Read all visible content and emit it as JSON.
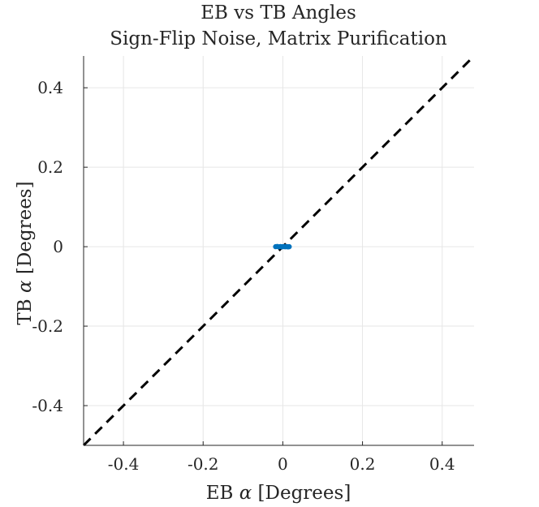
{
  "chart_data": {
    "type": "scatter",
    "title": [
      "EB vs TB Angles",
      "Sign-Flip Noise, Matrix Purification"
    ],
    "xlabel": {
      "prefix": "EB ",
      "symbol": "α",
      "suffix": " [Degrees]"
    },
    "ylabel": {
      "prefix": "TB ",
      "symbol": "α",
      "suffix": " [Degrees]"
    },
    "xlim": [
      -0.5,
      0.48
    ],
    "ylim": [
      -0.5,
      0.48
    ],
    "xticks": [
      -0.4,
      -0.2,
      0,
      0.2,
      0.4
    ],
    "yticks": [
      -0.4,
      -0.2,
      0,
      0.2,
      0.4
    ],
    "xtick_labels": [
      "-0.4",
      "-0.2",
      "0",
      "0.2",
      "0.4"
    ],
    "ytick_labels": [
      "-0.4",
      "-0.2",
      "0",
      "0.2",
      "0.4"
    ],
    "grid": true,
    "points": [
      {
        "x": -0.018,
        "y": 0.0
      },
      {
        "x": -0.014,
        "y": 0.0005
      },
      {
        "x": -0.01,
        "y": -0.0004
      },
      {
        "x": -0.006,
        "y": 0.0002
      },
      {
        "x": -0.002,
        "y": -0.0003
      },
      {
        "x": 0.002,
        "y": 0.0004
      },
      {
        "x": 0.006,
        "y": -0.0002
      },
      {
        "x": 0.01,
        "y": 0.0003
      },
      {
        "x": 0.013,
        "y": -0.0005
      },
      {
        "x": 0.016,
        "y": 0.0
      }
    ],
    "reference_line": {
      "x": [
        -0.5,
        0.48
      ],
      "y": [
        -0.5,
        0.48
      ],
      "style": "dashed"
    },
    "colors": {
      "points": "#0072bd",
      "reference_line": "#000000",
      "grid": "#e6e6e6",
      "axis": "#262626"
    }
  }
}
